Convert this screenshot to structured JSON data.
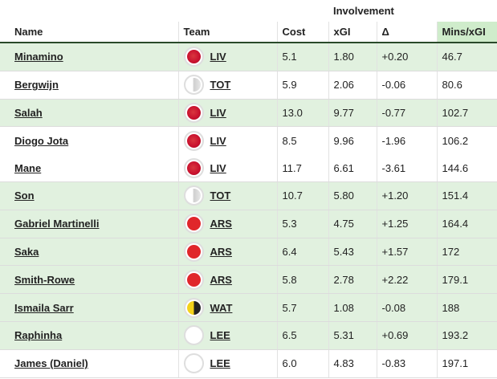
{
  "header": {
    "group_label": "Involvement",
    "columns": {
      "name": "Name",
      "team": "Team",
      "cost": "Cost",
      "xgi": "xGI",
      "delta": "Δ",
      "mins": "Mins/xGI"
    }
  },
  "colors": {
    "highlight_header": "#cfeccb",
    "row_shade": "#e1f1df",
    "liv": "#c8102e",
    "tot": "#d9d9d9",
    "ars": "#ef0107",
    "wat": "#fbee23",
    "lee": "#ffffff"
  },
  "rows": [
    {
      "name": "Minamino",
      "team": "LIV",
      "badge": "liv-badge-icon",
      "cost": "5.1",
      "xgi": "1.80",
      "delta": "+0.20",
      "mins": "46.7"
    },
    {
      "name": "Bergwijn",
      "team": "TOT",
      "badge": "tot-badge-icon",
      "cost": "5.9",
      "xgi": "2.06",
      "delta": "-0.06",
      "mins": "80.6"
    },
    {
      "name": "Salah",
      "team": "LIV",
      "badge": "liv-badge-icon",
      "cost": "13.0",
      "xgi": "9.77",
      "delta": "-0.77",
      "mins": "102.7"
    },
    {
      "name": "Diogo Jota",
      "team": "LIV",
      "badge": "liv-badge-icon",
      "cost": "8.5",
      "xgi": "9.96",
      "delta": "-1.96",
      "mins": "106.2"
    },
    {
      "name": "Mane",
      "team": "LIV",
      "badge": "liv-badge-icon",
      "cost": "11.7",
      "xgi": "6.61",
      "delta": "-3.61",
      "mins": "144.6"
    },
    {
      "name": "Son",
      "team": "TOT",
      "badge": "tot-badge-icon",
      "cost": "10.7",
      "xgi": "5.80",
      "delta": "+1.20",
      "mins": "151.4"
    },
    {
      "name": "Gabriel Martinelli",
      "team": "ARS",
      "badge": "ars-badge-icon",
      "cost": "5.3",
      "xgi": "4.75",
      "delta": "+1.25",
      "mins": "164.4"
    },
    {
      "name": "Saka",
      "team": "ARS",
      "badge": "ars-badge-icon",
      "cost": "6.4",
      "xgi": "5.43",
      "delta": "+1.57",
      "mins": "172"
    },
    {
      "name": "Smith-Rowe",
      "team": "ARS",
      "badge": "ars-badge-icon",
      "cost": "5.8",
      "xgi": "2.78",
      "delta": "+2.22",
      "mins": "179.1"
    },
    {
      "name": "Ismaila Sarr",
      "team": "WAT",
      "badge": "wat-badge-icon",
      "cost": "5.7",
      "xgi": "1.08",
      "delta": "-0.08",
      "mins": "188"
    },
    {
      "name": "Raphinha",
      "team": "LEE",
      "badge": "lee-badge-icon",
      "cost": "6.5",
      "xgi": "5.31",
      "delta": "+0.69",
      "mins": "193.2"
    },
    {
      "name": "James (Daniel)",
      "team": "LEE",
      "badge": "lee-badge-icon",
      "cost": "6.0",
      "xgi": "4.83",
      "delta": "-0.83",
      "mins": "197.1"
    }
  ]
}
